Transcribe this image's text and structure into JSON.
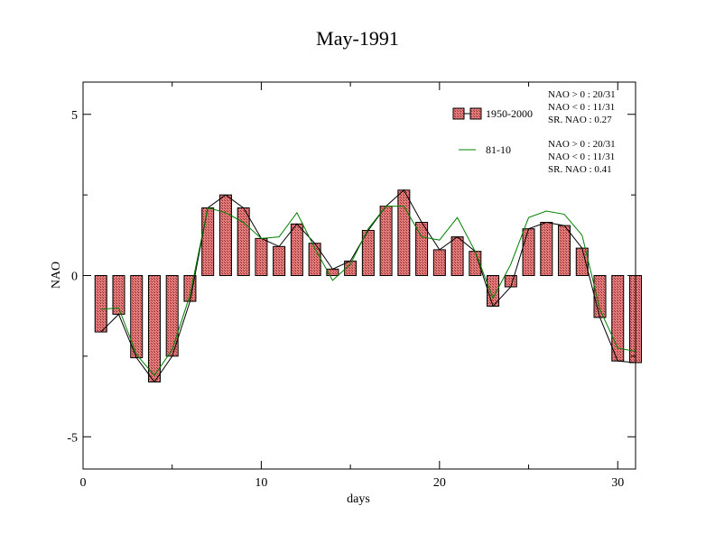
{
  "chart_data": {
    "type": "bar",
    "title": "May-1991",
    "xlabel": "days",
    "ylabel": "NAO",
    "xlim": [
      0,
      31
    ],
    "ylim": [
      -6,
      6
    ],
    "x_ticks": [
      0,
      10,
      20,
      30
    ],
    "y_ticks": [
      -5,
      0,
      5
    ],
    "grid": false,
    "legend_position": "top-right",
    "x": [
      1,
      2,
      3,
      4,
      5,
      6,
      7,
      8,
      9,
      10,
      11,
      12,
      13,
      14,
      15,
      16,
      17,
      18,
      19,
      20,
      21,
      22,
      23,
      24,
      25,
      26,
      27,
      28,
      29,
      30,
      31
    ],
    "series": [
      {
        "name": "1950-2000",
        "kind": "bar+line",
        "bar_color": "#e07070",
        "line_color": "#000000",
        "values": [
          -1.75,
          -1.2,
          -2.55,
          -3.3,
          -2.5,
          -0.8,
          2.1,
          2.5,
          2.1,
          1.15,
          0.9,
          1.6,
          1.0,
          0.2,
          0.45,
          1.4,
          2.15,
          2.65,
          1.65,
          0.8,
          1.2,
          0.75,
          -0.95,
          -0.35,
          1.45,
          1.65,
          1.55,
          0.85,
          -1.3,
          -2.65,
          -2.7
        ]
      },
      {
        "name": "81-10",
        "kind": "line",
        "line_color": "#008000",
        "values": [
          -1.05,
          -1.0,
          -2.45,
          -3.1,
          -2.3,
          -0.6,
          2.1,
          1.95,
          1.65,
          1.15,
          1.2,
          1.95,
          0.85,
          -0.15,
          0.35,
          1.45,
          2.15,
          2.15,
          1.2,
          1.1,
          1.8,
          0.75,
          -0.7,
          0.35,
          1.8,
          2.0,
          1.9,
          1.25,
          -1.05,
          -2.25,
          -2.35
        ]
      }
    ],
    "stats": [
      {
        "series": "1950-2000",
        "lines": [
          "NAO > 0 : 20/31",
          "NAO < 0 : 11/31",
          "SR. NAO :  0.27"
        ]
      },
      {
        "series": "81-10",
        "lines": [
          "NAO > 0 : 20/31",
          "NAO < 0 : 11/31",
          "SR. NAO :  0.41"
        ]
      }
    ]
  }
}
